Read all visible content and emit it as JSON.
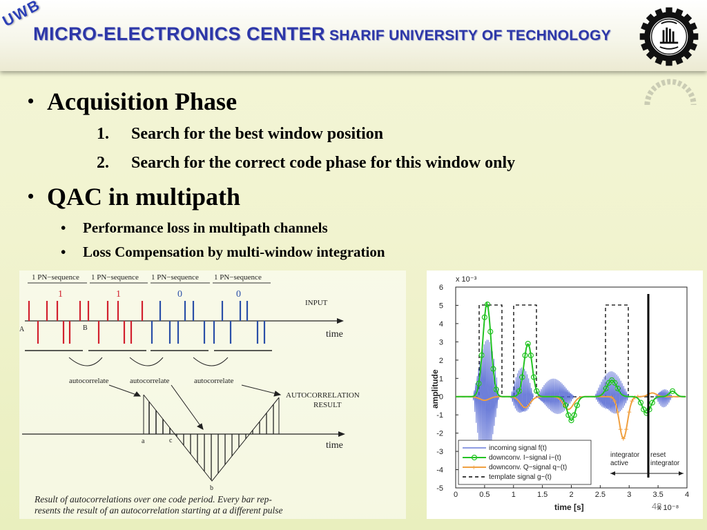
{
  "header": {
    "badge": "UWB",
    "title_main": "MICRO-ELECTRONICS CENTER",
    "title_sub": "SHARIF UNIVERSITY OF TECHNOLOGY"
  },
  "content": {
    "bullet1": "Acquisition Phase",
    "steps": [
      {
        "num": "1.",
        "text": "Search  for the best window position"
      },
      {
        "num": "2.",
        "text": "Search for the correct code phase for this window only"
      }
    ],
    "bullet2": "QAC in multipath",
    "subbullets": [
      "Performance loss in multipath channels",
      "Loss Compensation by multi-window integration"
    ]
  },
  "diagram": {
    "pn_labels": [
      "1 PN−sequence",
      "1 PN−sequence",
      "1 PN−sequence",
      "1 PN−sequence"
    ],
    "bits": [
      "1",
      "1",
      "0",
      "0"
    ],
    "input_label": "INPUT",
    "time_label": "time",
    "marker_a": "A",
    "marker_b": "B",
    "autocorrelate": [
      "autocorrelate",
      "autocorrelate",
      "autocorrelate"
    ],
    "result_label_1": "AUTOCORRELATION",
    "result_label_2": "RESULT",
    "point_a": "a",
    "point_b": "b",
    "point_c": "c",
    "caption_1": "Result of autocorrelations over one code period. Every bar rep-",
    "caption_2": "resents the result of an autocorrelation starting at a different pulse",
    "colors": {
      "one": "#d2202e",
      "zero": "#2a4fa8"
    }
  },
  "plot": {
    "y_exponent": "x 10⁻³",
    "x_exponent": "x 10⁻⁸",
    "ylabel": "amplitude",
    "xlabel": "time [s]",
    "yticks": [
      "6",
      "5",
      "4",
      "3",
      "2",
      "1",
      "0",
      "-1",
      "-2",
      "-3",
      "-4",
      "-5"
    ],
    "xticks": [
      "0",
      "0.5",
      "1",
      "1.5",
      "2",
      "2.5",
      "3",
      "3.5",
      "4"
    ],
    "legend": [
      "incoming signal f(t)",
      "downconv. I−signal i~(t)",
      "downconv. Q−signal q~(t)",
      "template signal g~(t)"
    ],
    "annot_integrator_1": "integrator",
    "annot_integrator_2": "active",
    "annot_reset_1": "reset",
    "annot_reset_2": "integrator",
    "colors": {
      "incoming": "#4a5fd0",
      "i_signal": "#22c322",
      "q_signal": "#f0a040",
      "template": "#000000"
    }
  },
  "slide_number": "48"
}
